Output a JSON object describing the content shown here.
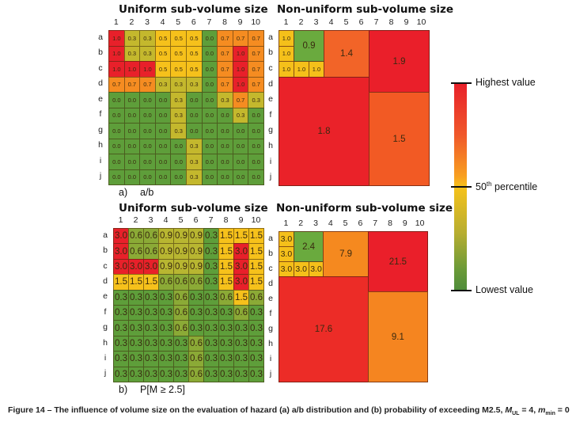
{
  "chart_data": [
    {
      "type": "heatmap",
      "id": "a_uniform",
      "title": "Uniform sub-volume size",
      "sublabel_letter": "a)",
      "sublabel_text": "a/b",
      "columns": [
        "1",
        "2",
        "3",
        "4",
        "5",
        "6",
        "7",
        "8",
        "9",
        "10"
      ],
      "rows": [
        "a",
        "b",
        "c",
        "d",
        "e",
        "f",
        "g",
        "h",
        "i",
        "j"
      ],
      "values": [
        [
          "1.0",
          "0.3",
          "0.3",
          "0.5",
          "0.5",
          "0.5",
          "0.0",
          "0.7",
          "0.7",
          "0.7"
        ],
        [
          "1.0",
          "0.3",
          "0.3",
          "0.5",
          "0.5",
          "0.5",
          "0.0",
          "0.7",
          "1.0",
          "0.7"
        ],
        [
          "1.0",
          "1.0",
          "1.0",
          "0.5",
          "0.5",
          "0.5",
          "0.0",
          "0.7",
          "1.0",
          "0.7"
        ],
        [
          "0.7",
          "0.7",
          "0.7",
          "0.3",
          "0.3",
          "0.3",
          "0.0",
          "0.7",
          "1.0",
          "0.7"
        ],
        [
          "0.0",
          "0.0",
          "0.0",
          "0.0",
          "0.3",
          "0.0",
          "0.0",
          "0.3",
          "0.7",
          "0.3"
        ],
        [
          "0.0",
          "0.0",
          "0.0",
          "0.0",
          "0.3",
          "0.0",
          "0.0",
          "0.0",
          "0.3",
          "0.0"
        ],
        [
          "0.0",
          "0.0",
          "0.0",
          "0.0",
          "0.3",
          "0.0",
          "0.0",
          "0.0",
          "0.0",
          "0.0"
        ],
        [
          "0.0",
          "0.0",
          "0.0",
          "0.0",
          "0.0",
          "0.3",
          "0.0",
          "0.0",
          "0.0",
          "0.0"
        ],
        [
          "0.0",
          "0.0",
          "0.0",
          "0.0",
          "0.0",
          "0.3",
          "0.0",
          "0.0",
          "0.0",
          "0.0"
        ],
        [
          "0.0",
          "0.0",
          "0.0",
          "0.0",
          "0.0",
          "0.3",
          "0.0",
          "0.0",
          "0.0",
          "0.0"
        ]
      ],
      "color_scale": {
        "min": 0.0,
        "mid": 0.5,
        "max": 1.0
      }
    },
    {
      "type": "heatmap",
      "id": "a_nonuniform",
      "title": "Non-uniform sub-volume size",
      "columns": [
        "1",
        "2",
        "3",
        "4",
        "5",
        "6",
        "7",
        "8",
        "9",
        "10"
      ],
      "rows": [
        "a",
        "b",
        "c",
        "d",
        "e",
        "f",
        "g",
        "h",
        "i",
        "j"
      ],
      "blocks": [
        {
          "label": "1.0",
          "col": 1,
          "row": 1,
          "cols": 1,
          "rows": 1,
          "color": "#f5c01a"
        },
        {
          "label": "1.0",
          "col": 1,
          "row": 2,
          "cols": 1,
          "rows": 1,
          "color": "#f5c01a"
        },
        {
          "label": "1.0",
          "col": 1,
          "row": 3,
          "cols": 1,
          "rows": 1,
          "color": "#f5c01a"
        },
        {
          "label": "1.0",
          "col": 2,
          "row": 3,
          "cols": 1,
          "rows": 1,
          "color": "#f5c01a"
        },
        {
          "label": "1.0",
          "col": 3,
          "row": 3,
          "cols": 1,
          "rows": 1,
          "color": "#f5c01a"
        },
        {
          "label": "0.9",
          "col": 2,
          "row": 1,
          "cols": 2,
          "rows": 2,
          "color": "#6aaa3e"
        },
        {
          "label": "1.4",
          "col": 4,
          "row": 1,
          "cols": 3,
          "rows": 3,
          "color": "#f26428"
        },
        {
          "label": "1.9",
          "col": 7,
          "row": 1,
          "cols": 4,
          "rows": 4,
          "color": "#ea1f2a"
        },
        {
          "label": "1.8",
          "col": 1,
          "row": 4,
          "cols": 6,
          "rows": 7,
          "color": "#ea2229"
        },
        {
          "label": "1.5",
          "col": 7,
          "row": 5,
          "cols": 4,
          "rows": 6,
          "color": "#f25a24"
        }
      ]
    },
    {
      "type": "heatmap",
      "id": "b_uniform",
      "title": "Uniform sub-volume size",
      "sublabel_letter": "b)",
      "sublabel_text": "P[M ≥ 2.5]",
      "columns": [
        "1",
        "2",
        "3",
        "4",
        "5",
        "6",
        "7",
        "8",
        "9",
        "10"
      ],
      "rows": [
        "a",
        "b",
        "c",
        "d",
        "e",
        "f",
        "g",
        "h",
        "i",
        "j"
      ],
      "values": [
        [
          "3.0",
          "0.6",
          "0.6",
          "0.9",
          "0.9",
          "0.9",
          "0.3",
          "1.5",
          "1.5",
          "1.5"
        ],
        [
          "3.0",
          "0.6",
          "0.6",
          "0.9",
          "0.9",
          "0.9",
          "0.3",
          "1.5",
          "3.0",
          "1.5"
        ],
        [
          "3.0",
          "3.0",
          "3.0",
          "0.9",
          "0.9",
          "0.9",
          "0.3",
          "1.5",
          "3.0",
          "1.5"
        ],
        [
          "1.5",
          "1.5",
          "1.5",
          "0.6",
          "0.6",
          "0.6",
          "0.3",
          "1.5",
          "3.0",
          "1.5"
        ],
        [
          "0.3",
          "0.3",
          "0.3",
          "0.3",
          "0.6",
          "0.3",
          "0.3",
          "0.6",
          "1.5",
          "0.6"
        ],
        [
          "0.3",
          "0.3",
          "0.3",
          "0.3",
          "0.6",
          "0.3",
          "0.3",
          "0.3",
          "0.6",
          "0.3"
        ],
        [
          "0.3",
          "0.3",
          "0.3",
          "0.3",
          "0.6",
          "0.3",
          "0.3",
          "0.3",
          "0.3",
          "0.3"
        ],
        [
          "0.3",
          "0.3",
          "0.3",
          "0.3",
          "0.3",
          "0.6",
          "0.3",
          "0.3",
          "0.3",
          "0.3"
        ],
        [
          "0.3",
          "0.3",
          "0.3",
          "0.3",
          "0.3",
          "0.6",
          "0.3",
          "0.3",
          "0.3",
          "0.3"
        ],
        [
          "0.3",
          "0.3",
          "0.3",
          "0.3",
          "0.3",
          "0.6",
          "0.3",
          "0.3",
          "0.3",
          "0.3"
        ]
      ],
      "color_scale": {
        "min": 0.3,
        "mid": 1.5,
        "max": 3.0
      }
    },
    {
      "type": "heatmap",
      "id": "b_nonuniform",
      "title": "Non-uniform sub-volume size",
      "columns": [
        "1",
        "2",
        "3",
        "4",
        "5",
        "6",
        "7",
        "8",
        "9",
        "10"
      ],
      "rows": [
        "a",
        "b",
        "c",
        "d",
        "e",
        "f",
        "g",
        "h",
        "i",
        "j"
      ],
      "blocks": [
        {
          "label": "3.0",
          "col": 1,
          "row": 1,
          "cols": 1,
          "rows": 1,
          "color": "#f5c01a"
        },
        {
          "label": "3.0",
          "col": 1,
          "row": 2,
          "cols": 1,
          "rows": 1,
          "color": "#f5c01a"
        },
        {
          "label": "3.0",
          "col": 1,
          "row": 3,
          "cols": 1,
          "rows": 1,
          "color": "#f5c01a"
        },
        {
          "label": "3.0",
          "col": 2,
          "row": 3,
          "cols": 1,
          "rows": 1,
          "color": "#f5c01a"
        },
        {
          "label": "3.0",
          "col": 3,
          "row": 3,
          "cols": 1,
          "rows": 1,
          "color": "#f5c01a"
        },
        {
          "label": "2.4",
          "col": 2,
          "row": 1,
          "cols": 2,
          "rows": 2,
          "color": "#6aaa3e"
        },
        {
          "label": "7.9",
          "col": 4,
          "row": 1,
          "cols": 3,
          "rows": 3,
          "color": "#f5891f"
        },
        {
          "label": "21.5",
          "col": 7,
          "row": 1,
          "cols": 4,
          "rows": 4,
          "color": "#ea1f2a"
        },
        {
          "label": "17.6",
          "col": 1,
          "row": 4,
          "cols": 6,
          "rows": 7,
          "color": "#ec2c27"
        },
        {
          "label": "9.1",
          "col": 7,
          "row": 5,
          "cols": 4,
          "rows": 6,
          "color": "#f58520"
        }
      ]
    }
  ],
  "legend": {
    "high": "Highest value",
    "mid_num": "50",
    "mid_sup": "th",
    "mid_rest": " percentile",
    "low": "Lowest value"
  },
  "caption": {
    "pre": "Figure 14 – The influence of volume size on the evaluation of hazard (a) a/b distribution and (b) probability of exceeding M2.5, ",
    "m": "M",
    "m_sub": "UL",
    "mid": " = 4, ",
    "mm": "m",
    "mm_sub": "min",
    "post": " = 0"
  },
  "palette": {
    "green": "#5e9e3a",
    "olive": "#b8b631",
    "yellow": "#f6c11b",
    "orange": "#f57f22",
    "red": "#e8202a"
  }
}
